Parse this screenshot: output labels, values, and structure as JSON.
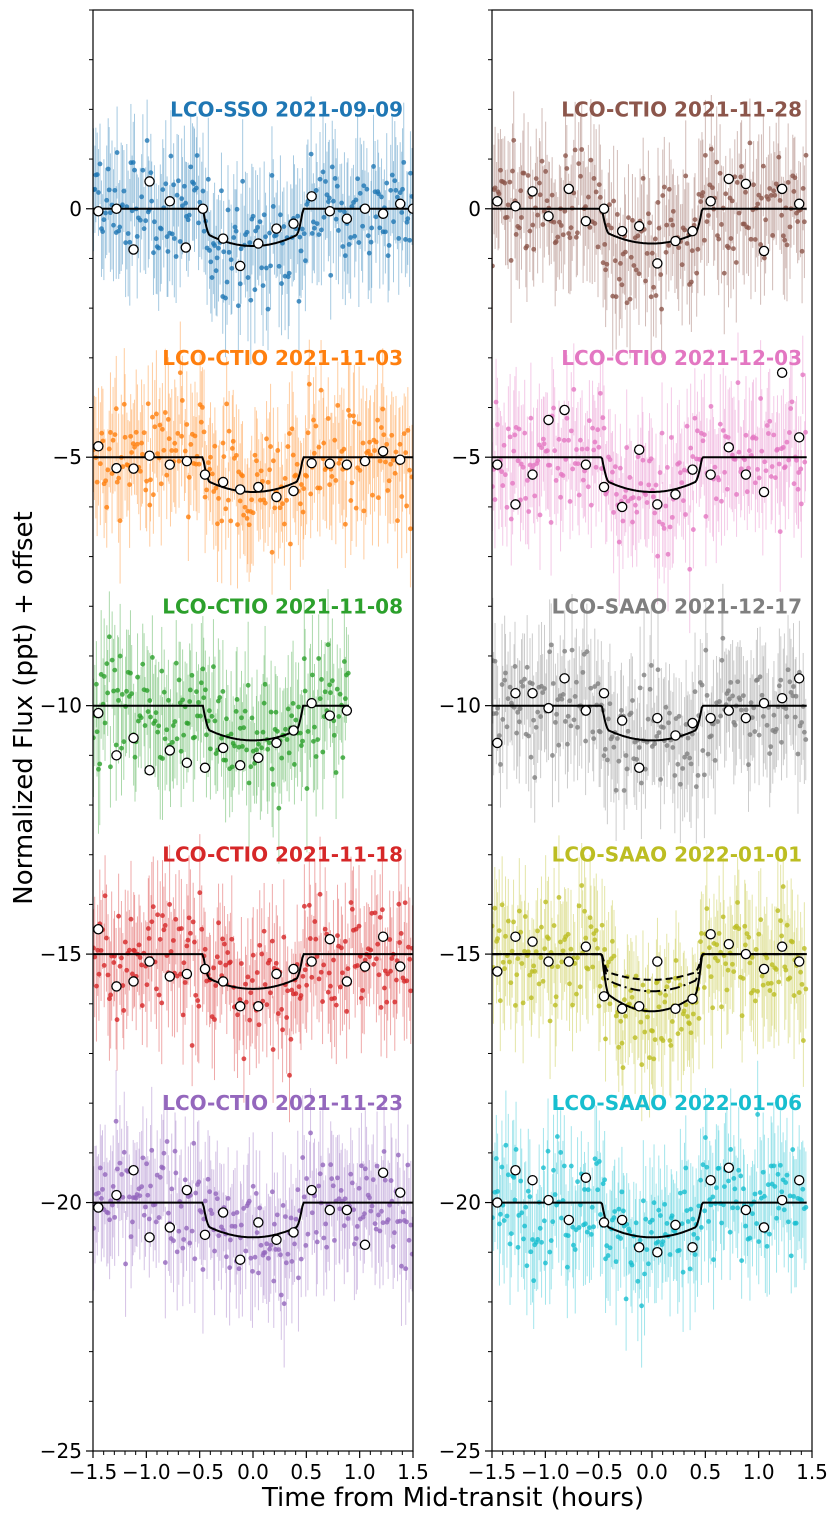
{
  "figure": {
    "ylabel": "Normalized Flux (ppt) + offset",
    "xlabel": "Time from Mid-transit (hours)"
  },
  "chart_data": [
    {
      "type": "scatter",
      "panel": "left",
      "xlim": [
        -1.5,
        1.5
      ],
      "ylim": [
        -25,
        4
      ],
      "xticks": [
        -1.5,
        -1.0,
        -0.5,
        0.0,
        0.5,
        1.0,
        1.5
      ],
      "xtick_labels": [
        "−1.5",
        "−1.0",
        "−0.5",
        "0.0",
        "0.5",
        "1.0",
        "1.5"
      ],
      "yticks": [
        0,
        -5,
        -10,
        -15,
        -20,
        -25
      ],
      "ytick_labels": [
        "0",
        "−5",
        "−10",
        "−15",
        "−20",
        "−25"
      ],
      "datasets": [
        {
          "label": "LCO-SSO 2021-09-09",
          "color": "#1f77b4",
          "offset": 0,
          "xrange": [
            -1.5,
            1.5
          ],
          "depth": 0.75,
          "binned": [
            [
              -1.45,
              -0.05
            ],
            [
              -1.28,
              0.0
            ],
            [
              -1.12,
              -0.82
            ],
            [
              -0.97,
              0.55
            ],
            [
              -0.78,
              0.15
            ],
            [
              -0.63,
              -0.78
            ],
            [
              -0.47,
              0.0
            ],
            [
              -0.28,
              -0.6
            ],
            [
              -0.12,
              -1.15
            ],
            [
              0.05,
              -0.7
            ],
            [
              0.22,
              -0.4
            ],
            [
              0.38,
              -0.3
            ],
            [
              0.55,
              0.25
            ],
            [
              0.72,
              -0.05
            ],
            [
              0.88,
              -0.2
            ],
            [
              1.05,
              0.0
            ],
            [
              1.22,
              -0.1
            ],
            [
              1.38,
              0.1
            ],
            [
              1.5,
              0.0
            ]
          ]
        },
        {
          "label": "LCO-CTIO 2021-11-03",
          "color": "#ff7f0e",
          "offset": -5,
          "xrange": [
            -1.5,
            1.5
          ],
          "depth": 0.7,
          "binned": [
            [
              -1.45,
              -4.78
            ],
            [
              -1.28,
              -5.22
            ],
            [
              -1.12,
              -5.23
            ],
            [
              -0.97,
              -4.97
            ],
            [
              -0.78,
              -5.15
            ],
            [
              -0.62,
              -5.08
            ],
            [
              -0.45,
              -5.35
            ],
            [
              -0.28,
              -5.5
            ],
            [
              -0.12,
              -5.65
            ],
            [
              0.05,
              -5.6
            ],
            [
              0.22,
              -5.8
            ],
            [
              0.38,
              -5.68
            ],
            [
              0.55,
              -5.12
            ],
            [
              0.72,
              -5.13
            ],
            [
              0.88,
              -5.15
            ],
            [
              1.05,
              -5.08
            ],
            [
              1.22,
              -4.88
            ],
            [
              1.38,
              -5.05
            ]
          ]
        },
        {
          "label": "LCO-CTIO 2021-11-08",
          "color": "#2ca02c",
          "offset": -10,
          "xrange": [
            -1.5,
            0.9
          ],
          "depth": 0.7,
          "binned": [
            [
              -1.45,
              -10.15
            ],
            [
              -1.28,
              -11.0
            ],
            [
              -1.12,
              -10.65
            ],
            [
              -0.97,
              -11.3
            ],
            [
              -0.78,
              -10.9
            ],
            [
              -0.62,
              -11.15
            ],
            [
              -0.45,
              -11.25
            ],
            [
              -0.28,
              -10.85
            ],
            [
              -0.12,
              -11.2
            ],
            [
              0.05,
              -11.05
            ],
            [
              0.22,
              -10.75
            ],
            [
              0.38,
              -10.5
            ],
            [
              0.55,
              -9.95
            ],
            [
              0.72,
              -10.2
            ],
            [
              0.88,
              -10.1
            ]
          ]
        },
        {
          "label": "LCO-CTIO 2021-11-18",
          "color": "#d62728",
          "offset": -15,
          "xrange": [
            -1.5,
            1.5
          ],
          "depth": 0.7,
          "binned": [
            [
              -1.45,
              -14.5
            ],
            [
              -1.28,
              -15.65
            ],
            [
              -1.12,
              -15.55
            ],
            [
              -0.97,
              -15.15
            ],
            [
              -0.78,
              -15.45
            ],
            [
              -0.62,
              -15.4
            ],
            [
              -0.45,
              -15.3
            ],
            [
              -0.28,
              -15.55
            ],
            [
              -0.12,
              -16.05
            ],
            [
              0.05,
              -16.05
            ],
            [
              0.22,
              -15.4
            ],
            [
              0.38,
              -15.3
            ],
            [
              0.55,
              -15.15
            ],
            [
              0.72,
              -14.7
            ],
            [
              0.88,
              -15.55
            ],
            [
              1.05,
              -15.25
            ],
            [
              1.22,
              -14.65
            ],
            [
              1.38,
              -15.25
            ]
          ]
        },
        {
          "label": "LCO-CTIO 2021-11-23",
          "color": "#9467bd",
          "offset": -20,
          "xrange": [
            -1.5,
            1.5
          ],
          "depth": 0.7,
          "binned": [
            [
              -1.45,
              -20.1
            ],
            [
              -1.28,
              -19.85
            ],
            [
              -1.12,
              -19.35
            ],
            [
              -0.97,
              -20.7
            ],
            [
              -0.78,
              -20.5
            ],
            [
              -0.62,
              -19.75
            ],
            [
              -0.45,
              -20.65
            ],
            [
              -0.28,
              -20.2
            ],
            [
              -0.12,
              -21.15
            ],
            [
              0.05,
              -20.4
            ],
            [
              0.22,
              -20.75
            ],
            [
              0.38,
              -20.6
            ],
            [
              0.55,
              -19.75
            ],
            [
              0.72,
              -20.15
            ],
            [
              0.88,
              -20.15
            ],
            [
              1.05,
              -20.85
            ],
            [
              1.22,
              -19.4
            ],
            [
              1.38,
              -19.8
            ]
          ]
        }
      ]
    },
    {
      "type": "scatter",
      "panel": "right",
      "xlim": [
        -1.5,
        1.5
      ],
      "ylim": [
        -25,
        4
      ],
      "xticks": [
        -1.5,
        -1.0,
        -0.5,
        0.0,
        0.5,
        1.0,
        1.5
      ],
      "xtick_labels": [
        "−1.5",
        "−1.0",
        "−0.5",
        "0.0",
        "0.5",
        "1.0",
        "1.5"
      ],
      "yticks": [
        0,
        -5,
        -10,
        -15,
        -20,
        -25
      ],
      "ytick_labels": [
        "0",
        "−5",
        "−10",
        "−15",
        "−20",
        "−25"
      ],
      "datasets": [
        {
          "label": "LCO-CTIO 2021-11-28",
          "color": "#8c564b",
          "offset": 0,
          "xrange": [
            -1.5,
            1.45
          ],
          "depth": 0.7,
          "binned": [
            [
              -1.45,
              0.15
            ],
            [
              -1.28,
              0.05
            ],
            [
              -1.12,
              0.35
            ],
            [
              -0.97,
              -0.15
            ],
            [
              -0.78,
              0.4
            ],
            [
              -0.62,
              -0.25
            ],
            [
              -0.45,
              0.0
            ],
            [
              -0.28,
              -0.45
            ],
            [
              -0.12,
              -0.35
            ],
            [
              0.05,
              -1.1
            ],
            [
              0.22,
              -0.65
            ],
            [
              0.38,
              -0.45
            ],
            [
              0.55,
              0.15
            ],
            [
              0.72,
              0.6
            ],
            [
              0.88,
              0.5
            ],
            [
              1.05,
              -0.85
            ],
            [
              1.22,
              0.4
            ],
            [
              1.38,
              0.1
            ]
          ]
        },
        {
          "label": "LCO-CTIO 2021-12-03",
          "color": "#e377c2",
          "offset": -5,
          "xrange": [
            -1.5,
            1.45
          ],
          "depth": 0.7,
          "binned": [
            [
              -1.45,
              -5.15
            ],
            [
              -1.28,
              -5.95
            ],
            [
              -1.12,
              -5.35
            ],
            [
              -0.97,
              -4.25
            ],
            [
              -0.82,
              -4.05
            ],
            [
              -0.62,
              -5.15
            ],
            [
              -0.45,
              -5.6
            ],
            [
              -0.28,
              -6.0
            ],
            [
              -0.12,
              -4.85
            ],
            [
              0.05,
              -5.95
            ],
            [
              0.22,
              -5.75
            ],
            [
              0.38,
              -5.25
            ],
            [
              0.55,
              -5.35
            ],
            [
              0.72,
              -4.8
            ],
            [
              0.88,
              -5.35
            ],
            [
              1.05,
              -5.7
            ],
            [
              1.22,
              -3.3
            ],
            [
              1.38,
              -4.6
            ]
          ]
        },
        {
          "label": "LCO-SAAO 2021-12-17",
          "color": "#7f7f7f",
          "offset": -10,
          "xrange": [
            -1.5,
            1.45
          ],
          "depth": 0.7,
          "binned": [
            [
              -1.45,
              -10.75
            ],
            [
              -1.28,
              -9.75
            ],
            [
              -1.12,
              -9.75
            ],
            [
              -0.97,
              -10.05
            ],
            [
              -0.82,
              -9.45
            ],
            [
              -0.62,
              -10.1
            ],
            [
              -0.45,
              -9.75
            ],
            [
              -0.28,
              -10.3
            ],
            [
              -0.12,
              -11.25
            ],
            [
              0.05,
              -10.25
            ],
            [
              0.22,
              -10.6
            ],
            [
              0.38,
              -10.35
            ],
            [
              0.55,
              -10.25
            ],
            [
              0.72,
              -10.1
            ],
            [
              0.88,
              -10.25
            ],
            [
              1.05,
              -9.95
            ],
            [
              1.22,
              -9.85
            ],
            [
              1.38,
              -9.45
            ]
          ]
        },
        {
          "label": "LCO-SAAO 2022-01-01",
          "color": "#bcbd22",
          "offset": -15,
          "xrange": [
            -1.5,
            1.45
          ],
          "depth": 1.15,
          "binned": [
            [
              -1.45,
              -15.35
            ],
            [
              -1.28,
              -14.65
            ],
            [
              -1.12,
              -14.75
            ],
            [
              -0.97,
              -15.15
            ],
            [
              -0.78,
              -15.15
            ],
            [
              -0.62,
              -14.85
            ],
            [
              -0.45,
              -15.85
            ],
            [
              -0.28,
              -16.1
            ],
            [
              -0.12,
              -16.05
            ],
            [
              0.05,
              -15.15
            ],
            [
              0.22,
              -16.1
            ],
            [
              0.38,
              -15.9
            ],
            [
              0.55,
              -14.6
            ],
            [
              0.72,
              -14.8
            ],
            [
              0.88,
              -15.0
            ],
            [
              1.05,
              -15.3
            ],
            [
              1.22,
              -14.85
            ],
            [
              1.38,
              -15.15
            ]
          ]
        },
        {
          "label": "LCO-SAAO 2022-01-06",
          "color": "#17becf",
          "offset": -20,
          "xrange": [
            -1.5,
            1.45
          ],
          "depth": 0.7,
          "binned": [
            [
              -1.45,
              -20.0
            ],
            [
              -1.28,
              -19.35
            ],
            [
              -1.12,
              -19.55
            ],
            [
              -0.97,
              -19.95
            ],
            [
              -0.78,
              -20.35
            ],
            [
              -0.62,
              -19.5
            ],
            [
              -0.45,
              -20.4
            ],
            [
              -0.28,
              -20.35
            ],
            [
              -0.12,
              -20.9
            ],
            [
              0.05,
              -21.0
            ],
            [
              0.22,
              -20.45
            ],
            [
              0.38,
              -20.9
            ],
            [
              0.55,
              -19.55
            ],
            [
              0.72,
              -19.3
            ],
            [
              0.88,
              -20.15
            ],
            [
              1.05,
              -20.5
            ],
            [
              1.22,
              -19.95
            ],
            [
              1.38,
              -19.55
            ]
          ]
        }
      ]
    }
  ]
}
